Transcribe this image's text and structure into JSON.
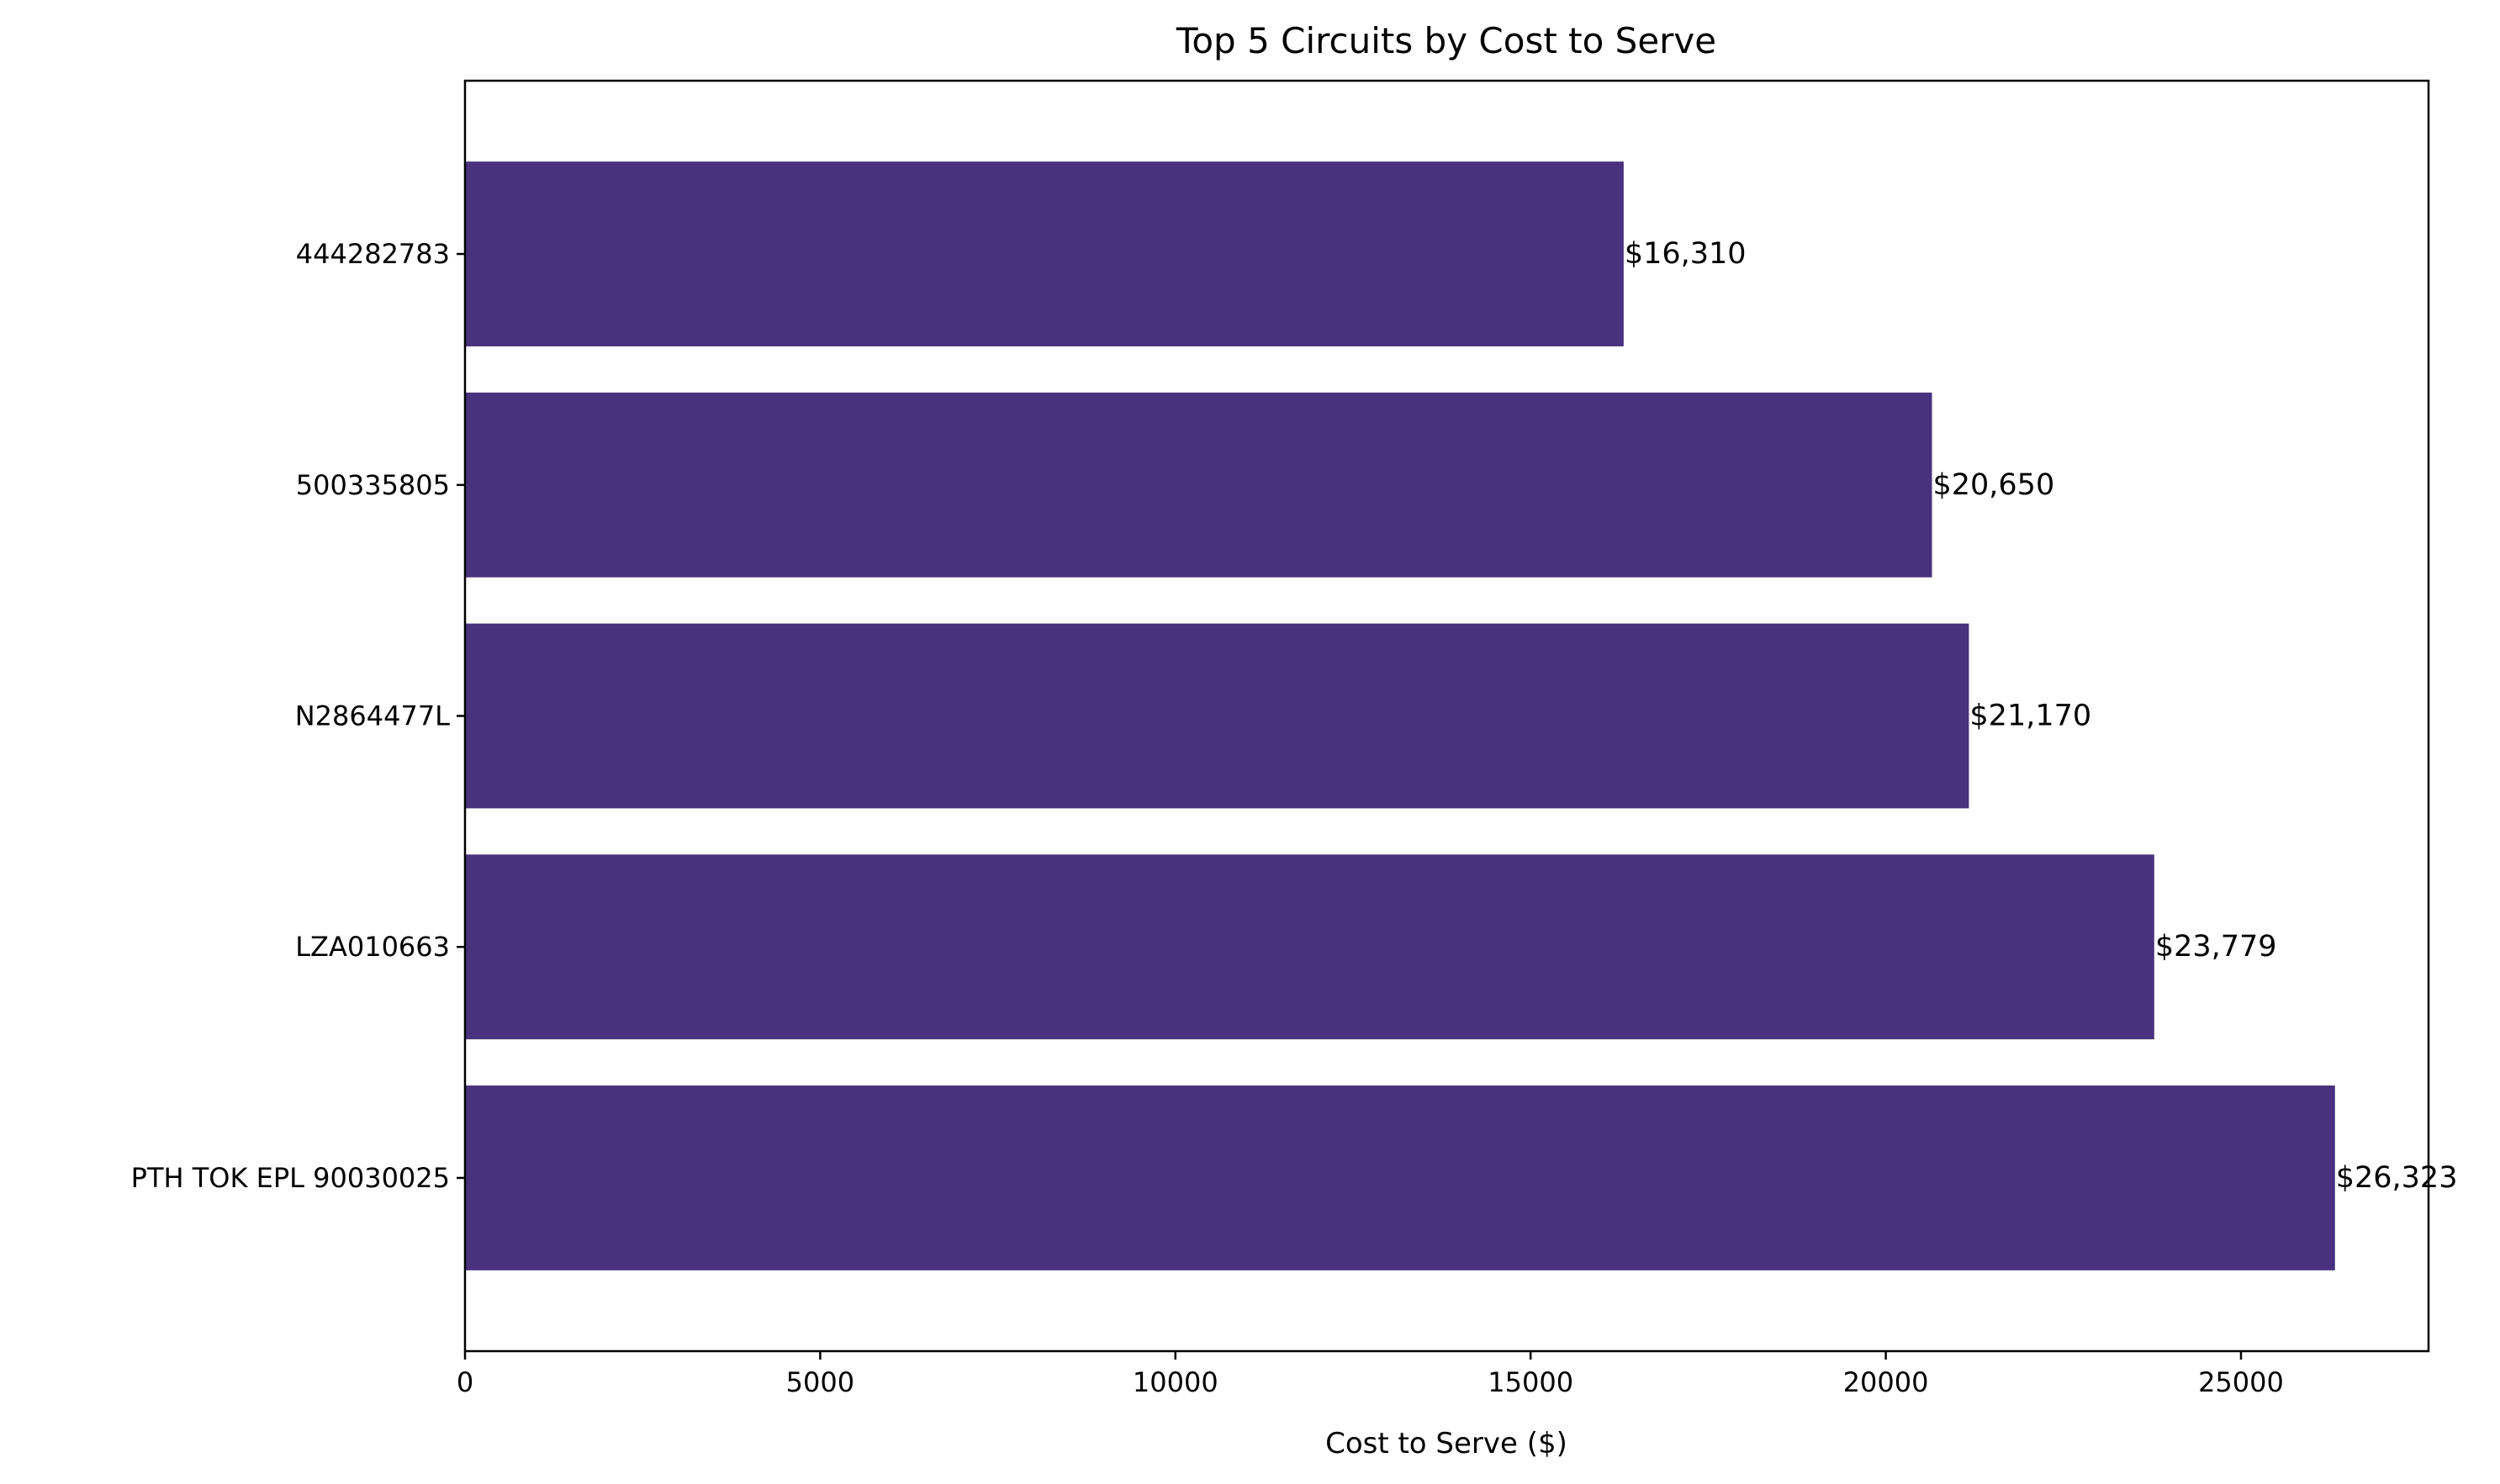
{
  "chart_data": {
    "type": "bar",
    "orientation": "horizontal",
    "title": "Top 5 Circuits by Cost to Serve",
    "xlabel": "Cost to Serve ($)",
    "ylabel": "",
    "categories": [
      "PTH TOK EPL 90030025",
      "LZA010663",
      "N2864477L",
      "500335805",
      "444282783"
    ],
    "values": [
      26323,
      23779,
      21170,
      20650,
      16310
    ],
    "data_labels": [
      "$26,323",
      "$23,779",
      "$21,170",
      "$20,650",
      "$16,310"
    ],
    "xlim": [
      0,
      27640
    ],
    "xticks": [
      0,
      5000,
      10000,
      15000,
      20000,
      25000
    ],
    "xtick_labels": [
      "0",
      "5000",
      "10000",
      "15000",
      "20000",
      "25000"
    ],
    "grid": false,
    "legend": "none",
    "bar_color": "#48327d"
  }
}
